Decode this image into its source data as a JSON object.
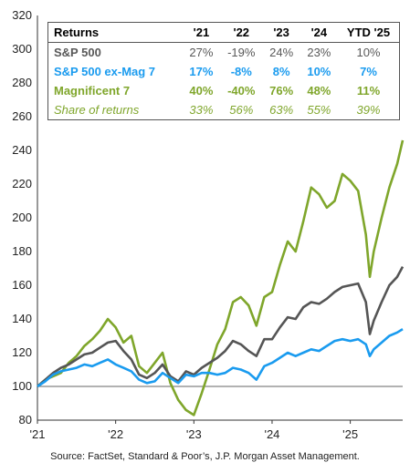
{
  "chart_data": {
    "type": "line",
    "x_labels": [
      "'21",
      "'22",
      "'23",
      "'24",
      "'25"
    ],
    "x_ticks": [
      2021.0,
      2022.0,
      2023.0,
      2024.0,
      2025.0
    ],
    "xlim": [
      2021.0,
      2025.67
    ],
    "ylim": [
      80,
      320
    ],
    "y_ticks": [
      80,
      100,
      120,
      140,
      160,
      180,
      200,
      220,
      240,
      260,
      280,
      300,
      320
    ],
    "series": [
      {
        "name": "S&P 500",
        "color": "#555555",
        "x": [
          2021.0,
          2021.1,
          2021.2,
          2021.3,
          2021.4,
          2021.5,
          2021.6,
          2021.7,
          2021.8,
          2021.9,
          2022.0,
          2022.1,
          2022.2,
          2022.3,
          2022.4,
          2022.5,
          2022.6,
          2022.7,
          2022.8,
          2022.9,
          2023.0,
          2023.1,
          2023.2,
          2023.3,
          2023.4,
          2023.5,
          2023.6,
          2023.7,
          2023.8,
          2023.9,
          2024.0,
          2024.1,
          2024.2,
          2024.3,
          2024.4,
          2024.5,
          2024.6,
          2024.7,
          2024.8,
          2024.9,
          2025.0,
          2025.1,
          2025.2,
          2025.25,
          2025.3,
          2025.4,
          2025.5,
          2025.6,
          2025.67
        ],
        "y": [
          100,
          104,
          108,
          111,
          113,
          116,
          119,
          120,
          123,
          126,
          127,
          121,
          116,
          107,
          105,
          108,
          113,
          106,
          103,
          109,
          107,
          111,
          114,
          117,
          121,
          127,
          125,
          121,
          118,
          128,
          128,
          135,
          141,
          140,
          147,
          150,
          149,
          152,
          156,
          159,
          160,
          161,
          150,
          131,
          139,
          150,
          160,
          165,
          171
        ]
      },
      {
        "name": "S&P 500 ex-Mag 7",
        "color": "#1a9bef",
        "x": [
          2021.0,
          2021.1,
          2021.2,
          2021.3,
          2021.4,
          2021.5,
          2021.6,
          2021.7,
          2021.8,
          2021.9,
          2022.0,
          2022.1,
          2022.2,
          2022.3,
          2022.4,
          2022.5,
          2022.6,
          2022.7,
          2022.8,
          2022.9,
          2023.0,
          2023.1,
          2023.2,
          2023.3,
          2023.4,
          2023.5,
          2023.6,
          2023.7,
          2023.8,
          2023.9,
          2024.0,
          2024.1,
          2024.2,
          2024.3,
          2024.4,
          2024.5,
          2024.6,
          2024.7,
          2024.8,
          2024.9,
          2025.0,
          2025.1,
          2025.2,
          2025.25,
          2025.3,
          2025.4,
          2025.5,
          2025.6,
          2025.67
        ],
        "y": [
          100,
          103,
          107,
          109,
          110,
          111,
          113,
          112,
          114,
          116,
          113,
          111,
          109,
          104,
          102,
          103,
          108,
          105,
          102,
          107,
          106,
          108,
          108,
          107,
          108,
          111,
          110,
          108,
          104,
          112,
          114,
          117,
          120,
          118,
          120,
          122,
          121,
          124,
          127,
          128,
          127,
          128,
          125,
          118,
          122,
          126,
          130,
          132,
          134
        ]
      },
      {
        "name": "Magnificent 7",
        "color": "#7fa62b",
        "x": [
          2021.0,
          2021.1,
          2021.2,
          2021.3,
          2021.4,
          2021.5,
          2021.6,
          2021.7,
          2021.8,
          2021.9,
          2022.0,
          2022.1,
          2022.2,
          2022.3,
          2022.4,
          2022.5,
          2022.6,
          2022.7,
          2022.8,
          2022.9,
          2023.0,
          2023.1,
          2023.2,
          2023.3,
          2023.4,
          2023.5,
          2023.6,
          2023.7,
          2023.8,
          2023.9,
          2024.0,
          2024.1,
          2024.2,
          2024.3,
          2024.4,
          2024.5,
          2024.6,
          2024.7,
          2024.8,
          2024.9,
          2025.0,
          2025.1,
          2025.2,
          2025.25,
          2025.3,
          2025.4,
          2025.5,
          2025.6,
          2025.67
        ],
        "y": [
          100,
          104,
          106,
          108,
          114,
          118,
          124,
          128,
          133,
          140,
          135,
          126,
          130,
          112,
          108,
          114,
          120,
          102,
          92,
          86,
          83,
          96,
          110,
          125,
          134,
          150,
          153,
          148,
          136,
          153,
          156,
          172,
          186,
          180,
          198,
          218,
          214,
          206,
          210,
          226,
          222,
          216,
          190,
          165,
          180,
          200,
          218,
          232,
          246
        ]
      }
    ]
  },
  "table": {
    "headers": [
      "Returns",
      "'21",
      "'22",
      "'23",
      "'24",
      "YTD '25"
    ],
    "rows": [
      {
        "label": "S&P 500",
        "values": [
          "27%",
          "-19%",
          "24%",
          "23%",
          "10%"
        ]
      },
      {
        "label": "S&P 500 ex-Mag 7",
        "values": [
          "17%",
          "-8%",
          "8%",
          "10%",
          "7%"
        ]
      },
      {
        "label": "Magnificent 7",
        "values": [
          "40%",
          "-40%",
          "76%",
          "48%",
          "11%"
        ]
      },
      {
        "label": "Share of returns",
        "values": [
          "33%",
          "56%",
          "63%",
          "55%",
          "39%"
        ]
      }
    ]
  },
  "source": "Source: FactSet, Standard & Poor’s, J.P. Morgan Asset Management."
}
